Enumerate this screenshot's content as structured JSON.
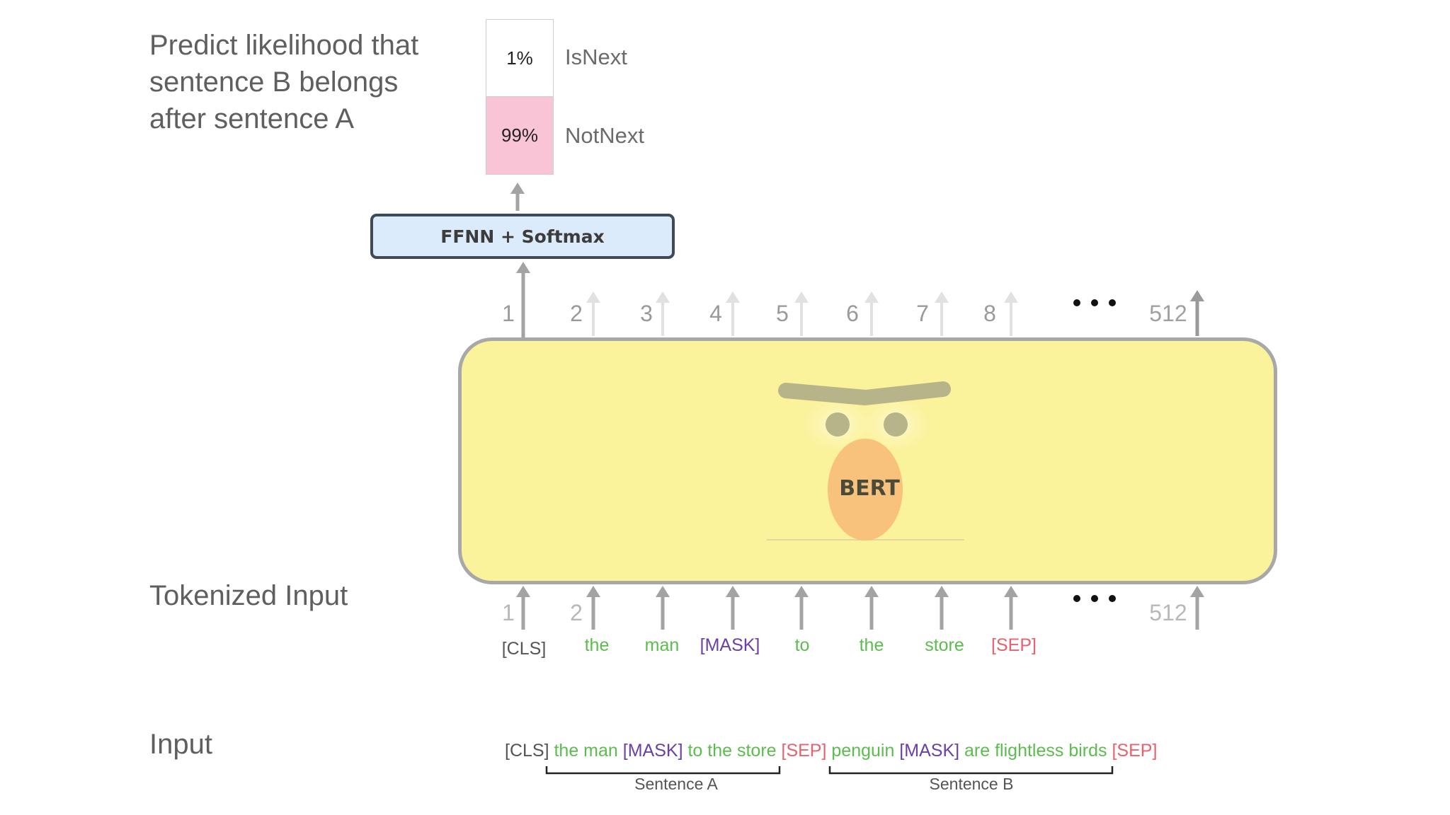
{
  "left_labels": {
    "predict": "Predict likelihood that sentence B belongs after sentence A",
    "tokenized": "Tokenized Input",
    "input": "Input"
  },
  "classification": {
    "isnext": {
      "percent": "1%",
      "label": "IsNext",
      "color": "#ffffff"
    },
    "notnext": {
      "percent": "99%",
      "label": "NotNext",
      "color": "#f9c5d6"
    }
  },
  "ffnn": {
    "label": "FFNN + Softmax",
    "color": "#dcebfb"
  },
  "bert": {
    "label": "BERT",
    "box_color": "#fbf29c",
    "face_color": "#f9c27c"
  },
  "positions": {
    "top": [
      "1",
      "2",
      "3",
      "4",
      "5",
      "6",
      "7",
      "8",
      "512"
    ],
    "bottom": [
      "1",
      "2",
      "512"
    ],
    "ellipsis": "•••"
  },
  "tokens": [
    {
      "text": "[CLS]",
      "kind": "cls"
    },
    {
      "text": "the",
      "kind": "word"
    },
    {
      "text": "man",
      "kind": "word"
    },
    {
      "text": "[MASK]",
      "kind": "mask"
    },
    {
      "text": "to",
      "kind": "word"
    },
    {
      "text": "the",
      "kind": "word"
    },
    {
      "text": "store",
      "kind": "word"
    },
    {
      "text": "[SEP]",
      "kind": "sep"
    }
  ],
  "input_sentence": {
    "cls": "[CLS]",
    "a": "the man",
    "mask1": "[MASK]",
    "a2": "to the store",
    "sep1": "[SEP]",
    "b": "penguin",
    "mask2": "[MASK]",
    "b2": "are flightless birds",
    "sep2": "[SEP]"
  },
  "segments": {
    "a": "Sentence A",
    "b": "Sentence B"
  },
  "colors": {
    "cls": "#555555",
    "word": "#5cbd4f",
    "mask": "#6b3fa8",
    "sep": "#e9616b",
    "arrow": "#a3a3a3"
  }
}
